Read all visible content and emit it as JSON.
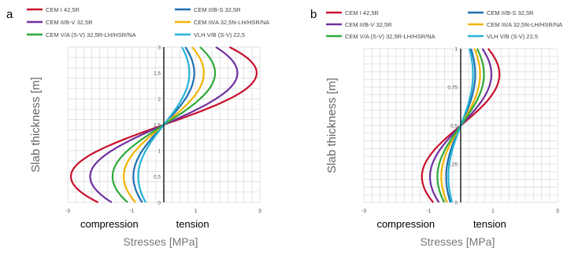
{
  "chart_data": [
    {
      "panel": "a",
      "type": "line",
      "ylabel": "Slab  thickness [m]",
      "xlabel": "Stresses [MPa]",
      "x_annotations": [
        "compression",
        "tension"
      ],
      "xlim": [
        -3,
        3
      ],
      "ylim": [
        0,
        3
      ],
      "xticks": [
        "-3",
        "-1",
        "1",
        "3"
      ],
      "yticks": [
        "0",
        "0,5",
        "1",
        "1,5",
        "2",
        "2,5",
        "3"
      ],
      "grid": true,
      "legend_position": "top",
      "series": [
        {
          "name": "CEM I 42,5R",
          "color": "#c8102e",
          "amplitude": 2.9
        },
        {
          "name": "CEM II/B-S 32,5R",
          "color": "#1f6fb0",
          "amplitude": 0.95
        },
        {
          "name": "CEM II/B-V 32,5R",
          "color": "#7030a0",
          "amplitude": 2.3
        },
        {
          "name": "CEM III/A 32,5N-LH/HSR/NA",
          "color": "#f0b400",
          "amplitude": 1.25
        },
        {
          "name": "CEM V/A (S-V) 32,5R-LH/HSR/NA",
          "color": "#2eaa3a",
          "amplitude": 1.6
        },
        {
          "name": "VLH V/B (S-V) 22,5",
          "color": "#25b4d6",
          "amplitude": 0.8
        }
      ]
    },
    {
      "panel": "b",
      "type": "line",
      "ylabel": "Slab  thickness [m]",
      "xlabel": "Stresses [MPa]",
      "x_annotations": [
        "compression",
        "tension"
      ],
      "xlim": [
        -3,
        3
      ],
      "ylim": [
        0,
        1
      ],
      "xticks": [
        "-3",
        "-1",
        "1",
        "3"
      ],
      "yticks": [
        "0",
        "0,25",
        "0,5",
        "0,75",
        "1"
      ],
      "grid": true,
      "legend_position": "top",
      "series": [
        {
          "name": "CEM I 42,5R",
          "color": "#c8102e",
          "amplitude": 1.2
        },
        {
          "name": "CEM II/B-S 32,5R",
          "color": "#1f6fb0",
          "amplitude": 0.45
        },
        {
          "name": "CEM II/B-V 32,5R",
          "color": "#7030a0",
          "amplitude": 0.95
        },
        {
          "name": "CEM III/A 32,5N-LH/HSR/NA",
          "color": "#f0b400",
          "amplitude": 0.6
        },
        {
          "name": "CEM V/A (S-V) 32,5R-LH/HSR/NA",
          "color": "#2eaa3a",
          "amplitude": 0.72
        },
        {
          "name": "VLH V/B (S-V) 22,5",
          "color": "#25b4d6",
          "amplitude": 0.38
        }
      ]
    }
  ]
}
